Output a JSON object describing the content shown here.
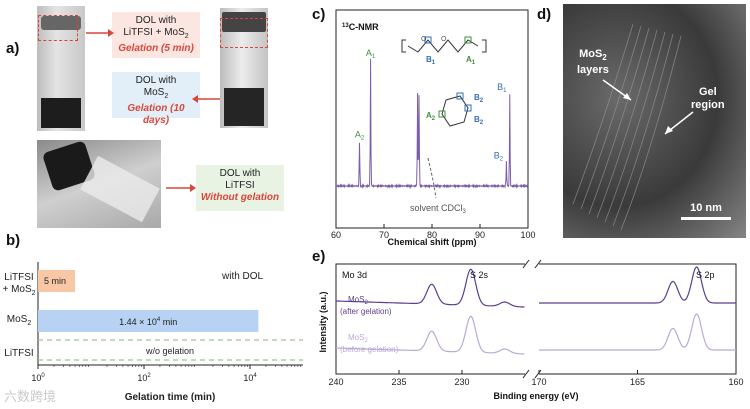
{
  "panel_labels": {
    "a": "a)",
    "b": "b)",
    "c": "c)",
    "d": "d)",
    "e": "e)"
  },
  "panel_a": {
    "box1": {
      "line1": "DOL  with",
      "line2": "LiTFSI + MoS",
      "line2_sub": "2",
      "line3": "Gelation (5 min)"
    },
    "box2": {
      "line1": "DOL with",
      "line2": "MoS",
      "line2_sub": "2",
      "line3": "Gelation (10 days)"
    },
    "box3": {
      "line1": "DOL with",
      "line2": "LiTFSI",
      "line3": "Without gelation"
    },
    "colors": {
      "red": "#d9473b",
      "box_pink": "#fbe6e2",
      "box_blue": "#e2eef8",
      "box_green": "#e9f3e4"
    }
  },
  "panel_b": {
    "chart_data": {
      "type": "bar",
      "orientation": "horizontal",
      "xscale": "log",
      "xlim": [
        1,
        100000
      ],
      "xlabel": "Gelation time (min)",
      "annotation": "with DOL",
      "categories": [
        "LiTFSI + MoS2",
        "MoS2",
        "LiTFSI"
      ],
      "cat_labels": [
        {
          "l1": "LiTFSI",
          "l2": "+ MoS",
          "sub": "2"
        },
        {
          "l1": "MoS",
          "sub": "2"
        },
        {
          "l1": "LiTFSI"
        }
      ],
      "values": [
        5,
        14400,
        null
      ],
      "bar_labels": [
        "5 min",
        "1.44 × 10",
        "w/o gelation"
      ],
      "bar_label_sup": [
        "",
        "4",
        ""
      ],
      "bar_label_unit": [
        "",
        " min",
        ""
      ],
      "colors": [
        "#f8c8a6",
        "#b7d2f2",
        "#8fc98f"
      ],
      "ticks": [
        {
          "base": "10",
          "exp": "0",
          "value": 1
        },
        {
          "base": "10",
          "exp": "2",
          "value": 100
        },
        {
          "base": "10",
          "exp": "4",
          "value": 10000
        }
      ]
    }
  },
  "panel_c": {
    "chart_data": {
      "type": "line",
      "title": "C-NMR",
      "title_sup": "13",
      "xlabel": "Chemical shift (ppm)",
      "xlim": [
        60,
        100
      ],
      "xreversed": false,
      "xticks": [
        60,
        70,
        80,
        90,
        100
      ],
      "peaks": [
        {
          "ppm": 64.9,
          "height": 0.3,
          "label": "A",
          "sub": "2",
          "color": "#3f8f3a"
        },
        {
          "ppm": 67.2,
          "height": 0.85,
          "label": "A",
          "sub": "1",
          "color": "#3f8f3a"
        },
        {
          "ppm": 77.0,
          "height": 0.62,
          "label": "",
          "sub": "",
          "color": ""
        },
        {
          "ppm": 77.3,
          "height": 0.62,
          "label": "",
          "sub": "",
          "color": ""
        },
        {
          "ppm": 95.5,
          "height": 0.16,
          "label": "B",
          "sub": "2",
          "color": "#2f6fb6"
        },
        {
          "ppm": 96.2,
          "height": 0.62,
          "label": "B",
          "sub": "1",
          "color": "#2f6fb6"
        }
      ],
      "solvent_label": "solvent CDCl",
      "solvent_sub": "3",
      "line_color": "#7a5fa8"
    },
    "struct_labels": {
      "B1": "B",
      "B1s": "1",
      "A1": "A",
      "A1s": "1",
      "B2a": "B",
      "B2as": "2",
      "B2b": "B",
      "B2bs": "2",
      "A2": "A",
      "A2s": "2"
    }
  },
  "panel_d": {
    "label_mos2": "MoS",
    "label_mos2_sub": "2",
    "label_layers": "layers",
    "label_gel1": "Gel",
    "label_gel2": "region",
    "scale": "10 nm"
  },
  "panel_e": {
    "chart_data": {
      "type": "line",
      "xlabel": "Binding energy (eV)",
      "ylabel": "Intensity (a.u.)",
      "xreversed": true,
      "segments": [
        {
          "xlim": [
            240,
            225
          ],
          "ticks": [
            240,
            235,
            230
          ]
        },
        {
          "xlim": [
            170,
            160
          ],
          "ticks": [
            170,
            165,
            160
          ]
        }
      ],
      "region_labels": [
        "Mo 3d",
        "S 2s",
        "S 2p"
      ],
      "series": [
        {
          "name": "MoS2 (after gelation)",
          "label1": "MoS",
          "label1_sub": "2",
          "label2": "(after gelation)",
          "color": "#5b3f8f"
        },
        {
          "name": "MoS2 (before gelation)",
          "label1": "MoS",
          "label1_sub": "2",
          "label2": "(before gelation)",
          "color": "#b9a9d8"
        }
      ],
      "peaks_mo3d": [
        {
          "be": 232.4,
          "h": 0.55
        },
        {
          "be": 229.3,
          "h": 1.0
        },
        {
          "be": 226.6,
          "h": 0.12
        }
      ],
      "peaks_s2p": [
        {
          "be": 163.2,
          "h": 0.6
        },
        {
          "be": 162.0,
          "h": 1.0
        }
      ]
    }
  },
  "watermark": "六数跨境"
}
